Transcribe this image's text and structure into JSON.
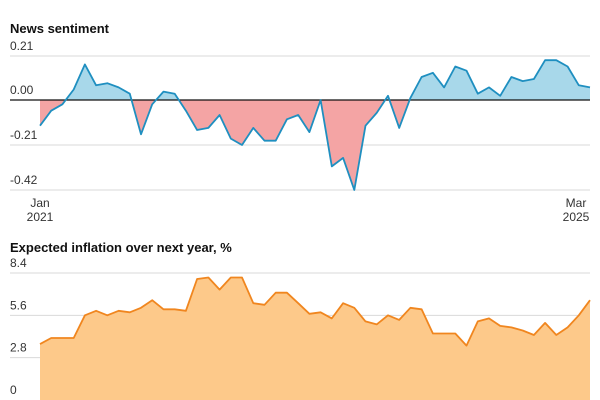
{
  "chart_data": [
    {
      "type": "area",
      "title": "News sentiment",
      "xlabel": "",
      "ylabel": "",
      "yticks": [
        "0.21",
        "0.00",
        "-0.21",
        "-0.42"
      ],
      "ytick_values": [
        0.21,
        0.0,
        -0.21,
        -0.42
      ],
      "ylim": [
        -0.44,
        0.24
      ],
      "xticks": [
        {
          "month": "Jan",
          "year": "2021",
          "index": 0
        },
        {
          "month": "Mar",
          "year": "2025",
          "index": 50
        }
      ],
      "positive_color": "#a8d8ea",
      "negative_color": "#f4a4a4",
      "line_color": "#1f8fc0",
      "grid": true,
      "series": [
        {
          "values": [
            -0.12,
            -0.05,
            -0.02,
            0.05,
            0.17,
            0.07,
            0.08,
            0.06,
            0.03,
            -0.16,
            -0.02,
            0.04,
            0.03,
            -0.05,
            -0.14,
            -0.13,
            -0.07,
            -0.18,
            -0.21,
            -0.13,
            -0.19,
            -0.19,
            -0.09,
            -0.07,
            -0.15,
            0.0,
            -0.31,
            -0.27,
            -0.42,
            -0.12,
            -0.06,
            0.02,
            -0.13,
            0.01,
            0.11,
            0.13,
            0.06,
            0.16,
            0.14,
            0.03,
            0.06,
            0.02,
            0.11,
            0.09,
            0.1,
            0.19,
            0.19,
            0.16,
            0.07,
            0.06
          ]
        }
      ]
    },
    {
      "type": "area",
      "title": "Expected inflation over next year, %",
      "xlabel": "",
      "ylabel": "",
      "yticks": [
        "8.4",
        "5.6",
        "2.8",
        "0"
      ],
      "ytick_values": [
        8.4,
        5.6,
        2.8,
        0
      ],
      "ylim": [
        0,
        8.6
      ],
      "fill_color": "#fdc98a",
      "line_color": "#f0861f",
      "grid": true,
      "series": [
        {
          "values": [
            3.7,
            4.1,
            4.1,
            4.1,
            5.6,
            5.9,
            5.6,
            5.9,
            5.8,
            6.1,
            6.6,
            6.0,
            6.0,
            5.9,
            8.0,
            8.1,
            7.3,
            8.1,
            8.1,
            6.4,
            6.3,
            7.1,
            7.1,
            6.4,
            5.7,
            5.8,
            5.4,
            6.4,
            6.1,
            5.2,
            5.0,
            5.6,
            5.3,
            6.1,
            6.0,
            4.4,
            4.4,
            4.4,
            3.6,
            5.2,
            5.4,
            4.9,
            4.8,
            4.6,
            4.3,
            5.1,
            4.3,
            4.8,
            5.6,
            6.6
          ]
        }
      ]
    }
  ]
}
